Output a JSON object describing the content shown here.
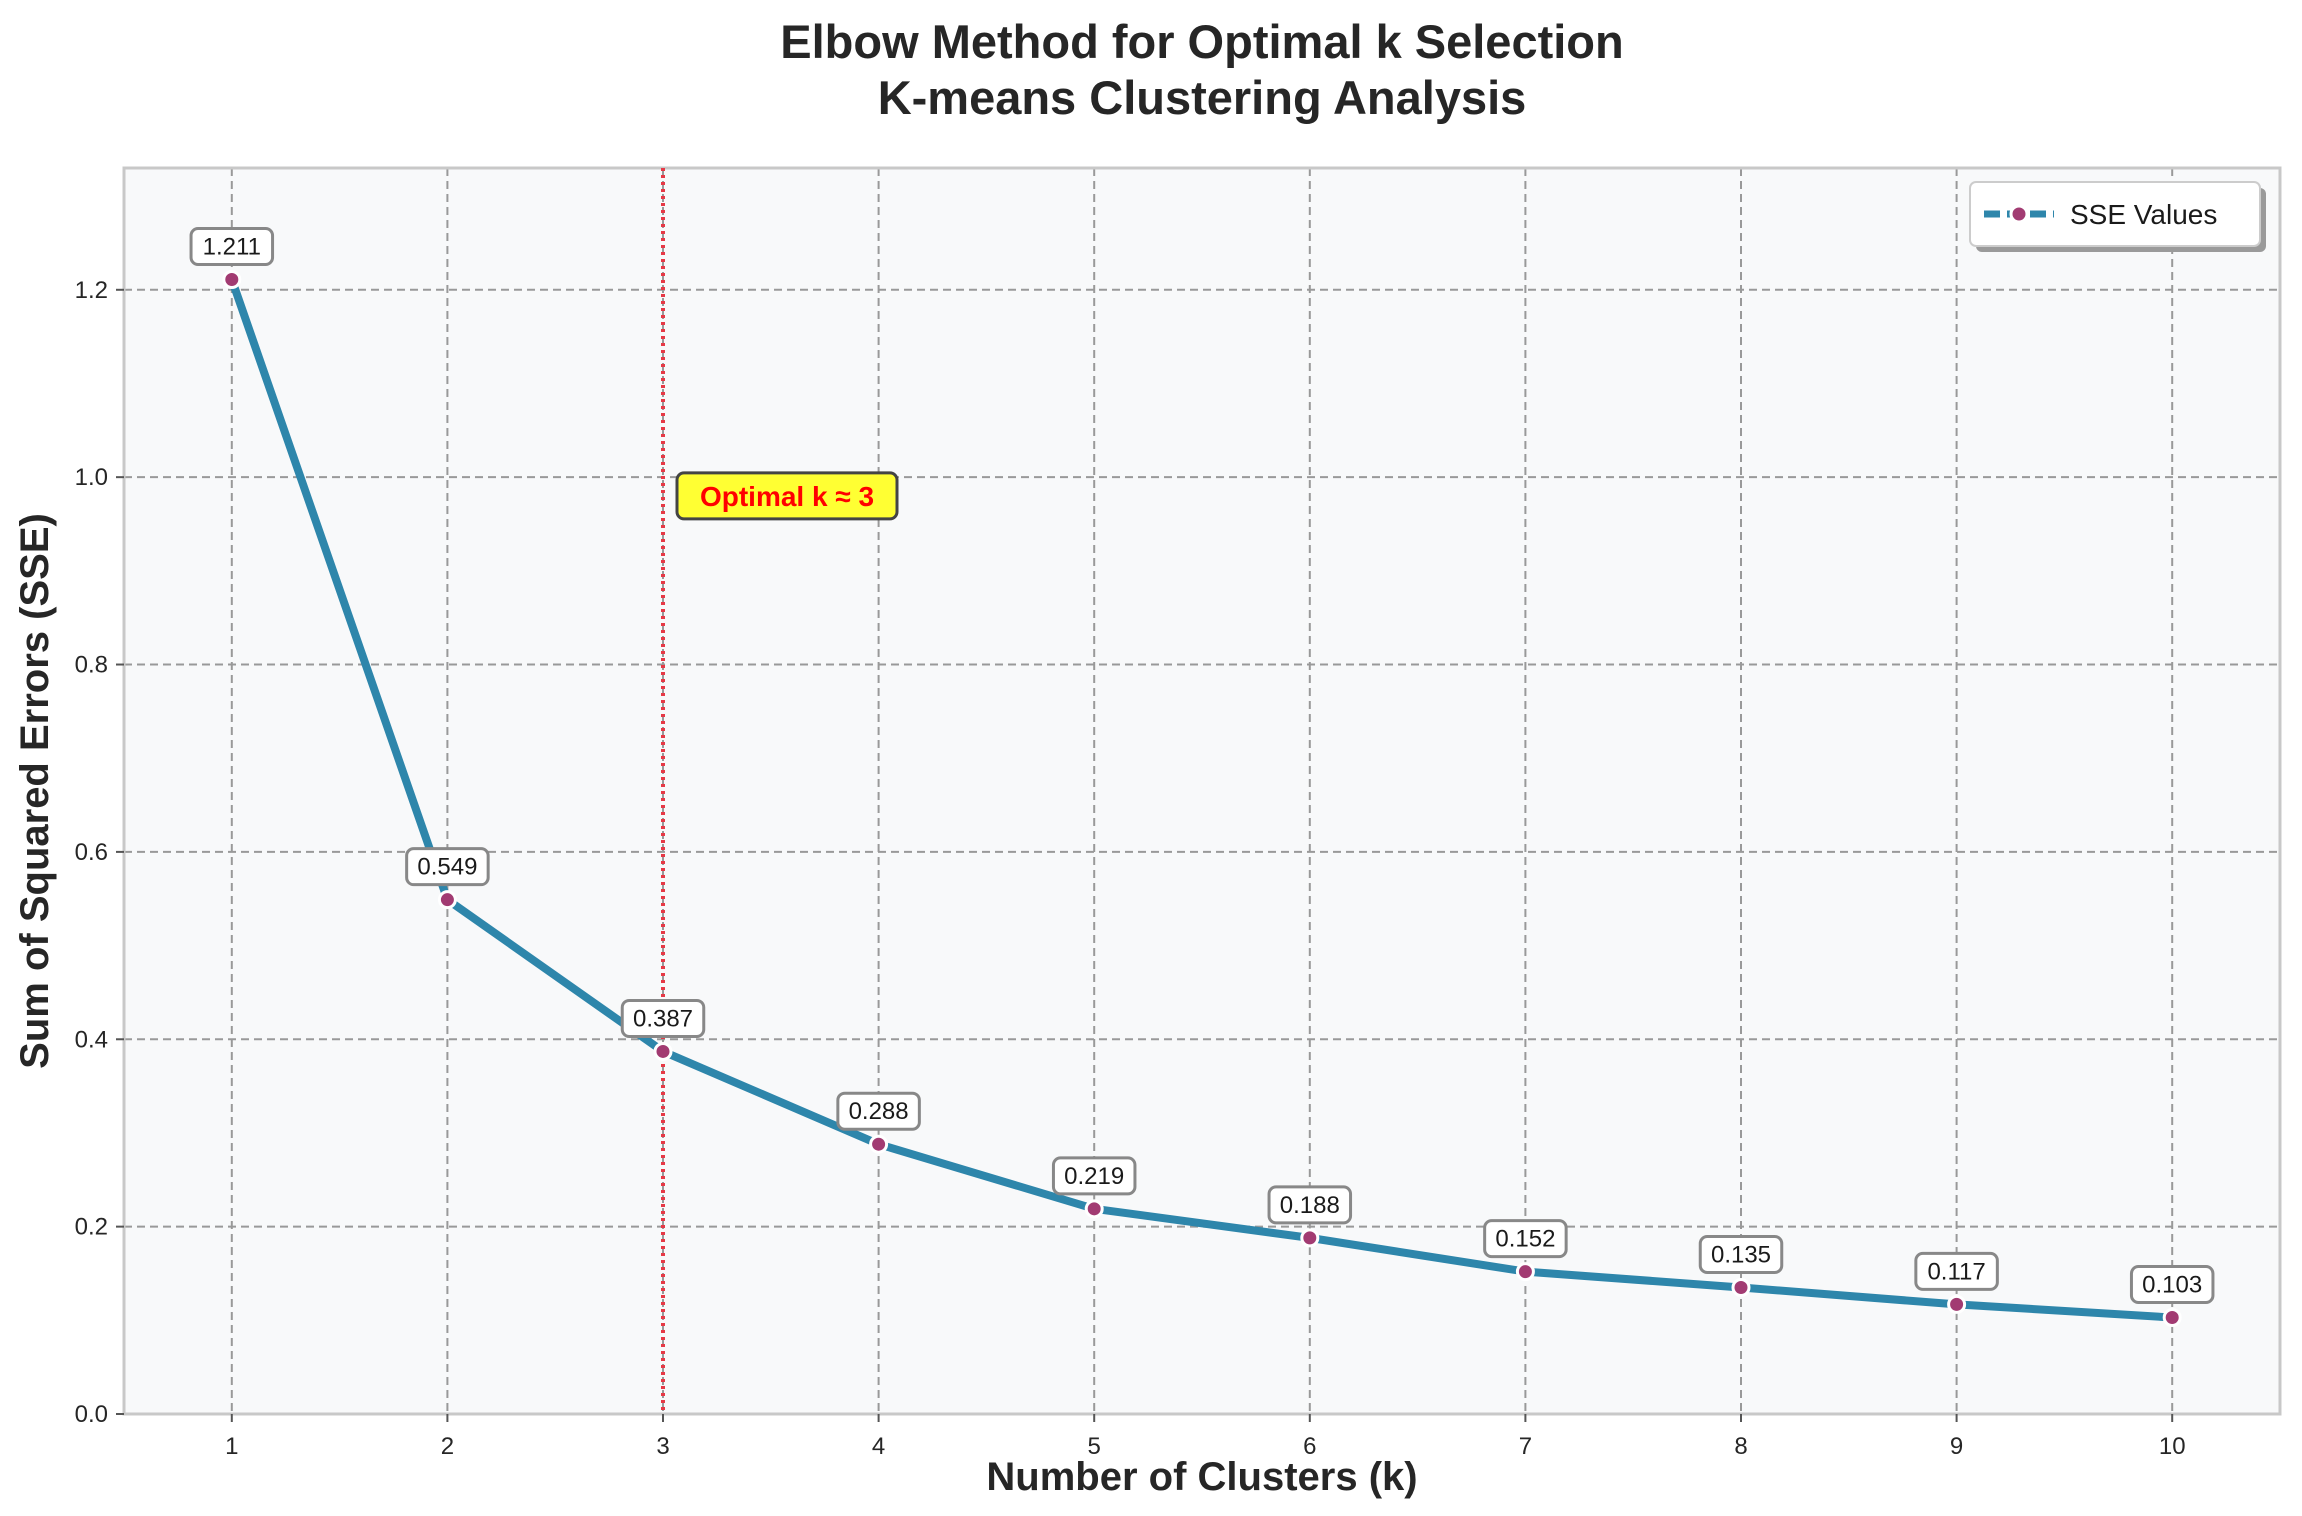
{
  "chart_data": {
    "type": "line",
    "title": "Elbow Method for Optimal k Selection",
    "subtitle": "K-means Clustering Analysis",
    "xlabel": "Number of Clusters (k)",
    "ylabel": "Sum of Squared Errors (SSE)",
    "x": [
      1,
      2,
      3,
      4,
      5,
      6,
      7,
      8,
      9,
      10
    ],
    "series": [
      {
        "name": "SSE Values",
        "values": [
          1.211,
          0.549,
          0.387,
          0.288,
          0.219,
          0.188,
          0.152,
          0.135,
          0.117,
          0.103
        ],
        "labels": [
          "1.211",
          "0.549",
          "0.387",
          "0.288",
          "0.219",
          "0.188",
          "0.152",
          "0.135",
          "0.117",
          "0.103"
        ]
      }
    ],
    "xlim": [
      0.5,
      10.5
    ],
    "ylim": [
      0,
      1.33
    ],
    "xticks": [
      1,
      2,
      3,
      4,
      5,
      6,
      7,
      8,
      9,
      10
    ],
    "xtick_labels": [
      "1",
      "2",
      "3",
      "4",
      "5",
      "6",
      "7",
      "8",
      "9",
      "10"
    ],
    "yticks": [
      0,
      0.2,
      0.4,
      0.6,
      0.8,
      1.0,
      1.2
    ],
    "ytick_labels": [
      "0.0",
      "0.2",
      "0.4",
      "0.6",
      "0.8",
      "1.0",
      "1.2"
    ],
    "grid": true,
    "legend_position": "top-right",
    "optimal_line": {
      "x": 3
    },
    "annotation": {
      "text": "Optimal k ≈ 3",
      "x": 3,
      "y": 0.98
    },
    "colors": {
      "line": "#2e86ab",
      "marker": "#a23b72",
      "vline": "#e63946",
      "annotation_text": "#ff0000",
      "annotation_bg": "#ffff33",
      "plot_bg": "#f8f9fa",
      "grid": "#999999"
    }
  }
}
